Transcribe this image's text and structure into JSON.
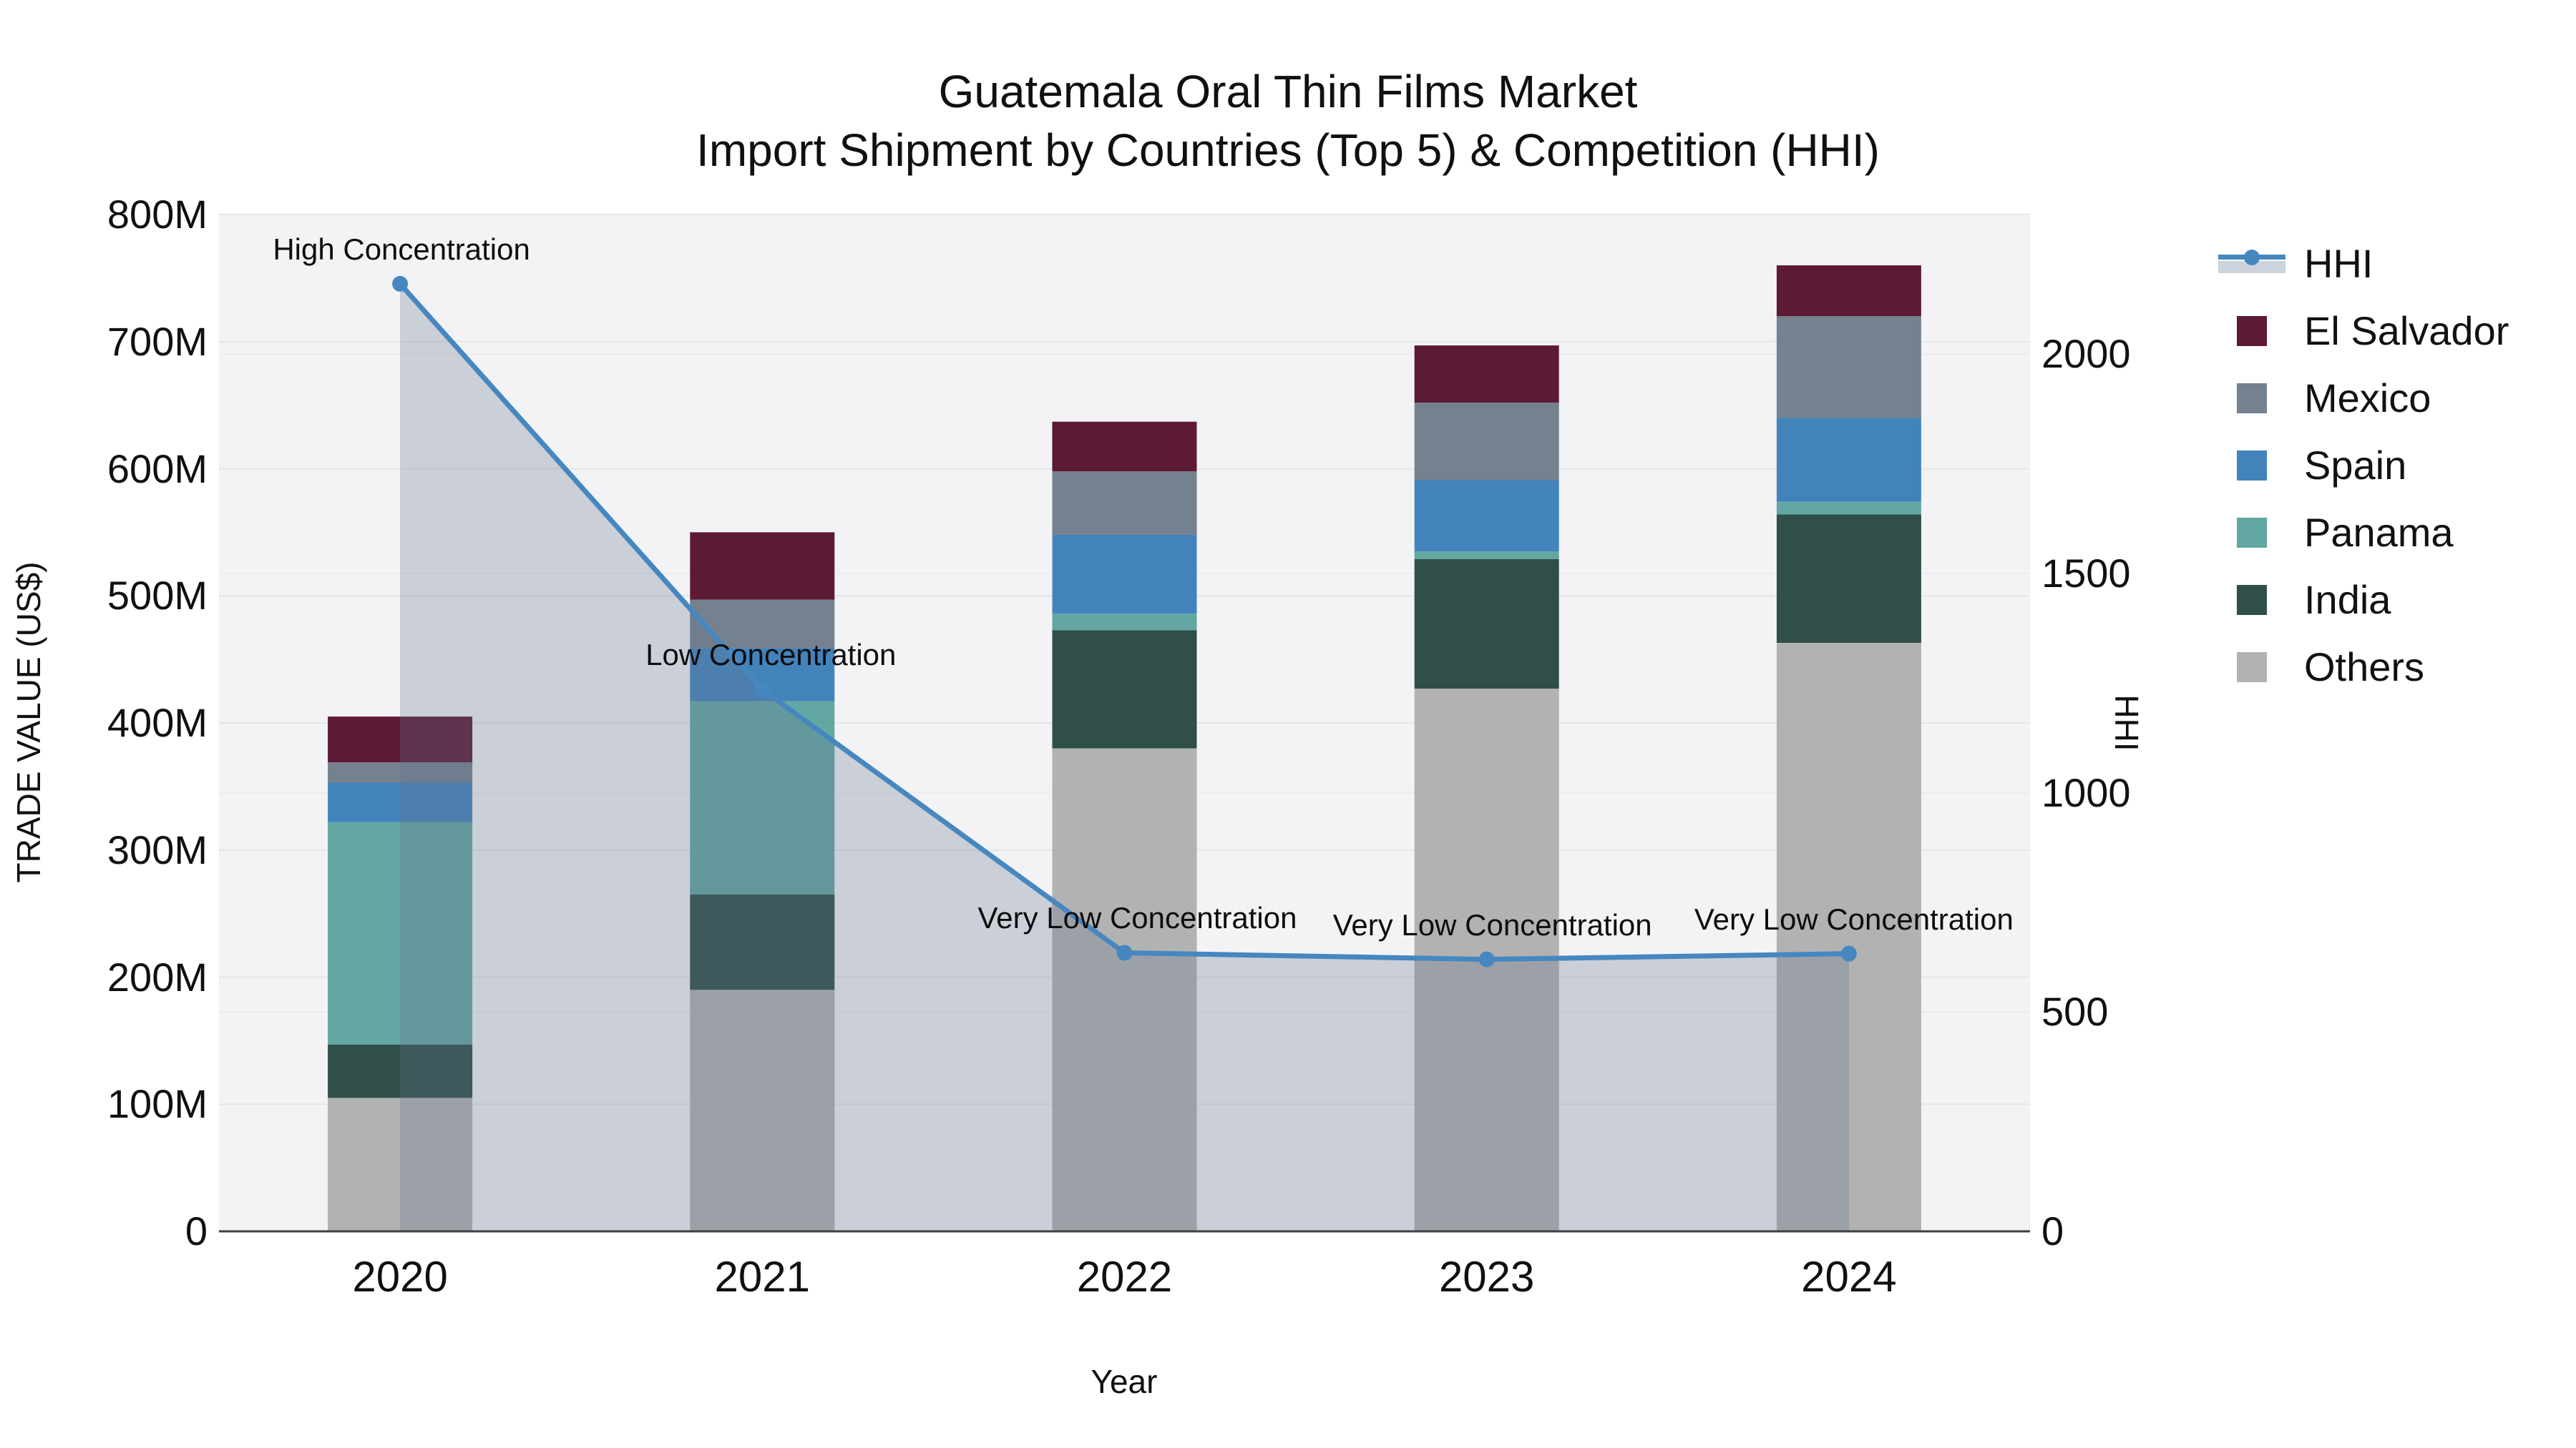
{
  "title": {
    "line1": "Guatemala Oral Thin Films Market",
    "line2": "Import Shipment by Countries (Top 5) & Competition (HHI)"
  },
  "axes": {
    "left": {
      "title": "TRADE VALUE (US$)",
      "tick_labels": [
        "0",
        "100M",
        "200M",
        "300M",
        "400M",
        "500M",
        "600M",
        "700M",
        "800M"
      ],
      "tick_values": [
        0,
        100,
        200,
        300,
        400,
        500,
        600,
        700,
        800
      ],
      "max": 800
    },
    "right": {
      "title": "HHI",
      "tick_labels": [
        "0",
        "500",
        "1000",
        "1500",
        "2000"
      ],
      "tick_values": [
        0,
        500,
        1000,
        1500,
        2000
      ],
      "max": 2318
    },
    "x": {
      "title": "Year"
    }
  },
  "chart_data": {
    "type": "combo-stacked-bar-line",
    "categories": [
      "2020",
      "2021",
      "2022",
      "2023",
      "2024"
    ],
    "value_unit": "US$ millions",
    "series": [
      {
        "name": "Others",
        "color": "#b2b2b2",
        "values": [
          105,
          190,
          380,
          427,
          463
        ]
      },
      {
        "name": "India",
        "color": "#2f4f48",
        "values": [
          42,
          75,
          93,
          102,
          101
        ]
      },
      {
        "name": "Panama",
        "color": "#63a7a3",
        "values": [
          175,
          152,
          13,
          6,
          10
        ]
      },
      {
        "name": "Spain",
        "color": "#4383bc",
        "values": [
          31,
          42,
          62,
          56,
          66
        ]
      },
      {
        "name": "Mexico",
        "color": "#74818f",
        "values": [
          16,
          38,
          50,
          61,
          80
        ]
      },
      {
        "name": "El Salvador",
        "color": "#5d1a37",
        "values": [
          36,
          53,
          39,
          45,
          40
        ]
      }
    ],
    "bar_totals": [
      405,
      550,
      637,
      697,
      760
    ],
    "line": {
      "name": "HHI",
      "color": "#4687c0",
      "area_fill": "rgba(100,115,140,0.28)",
      "values": [
        2160,
        1235,
        635,
        620,
        633
      ]
    },
    "annotations": [
      {
        "text": "High Concentration",
        "index": 0,
        "dx": 2
      },
      {
        "text": "Low Concentration",
        "index": 1,
        "dx": 12
      },
      {
        "text": "Very Low Concentration",
        "index": 2,
        "dx": 18
      },
      {
        "text": "Very Low Concentration",
        "index": 3,
        "dx": 8
      },
      {
        "text": "Very Low Concentration",
        "index": 4,
        "dx": 7
      }
    ],
    "ylim_left": [
      0,
      800
    ],
    "ylim_right": [
      0,
      2318
    ],
    "grid": true,
    "legend_position": "right"
  },
  "legend": {
    "items": [
      {
        "label": "HHI",
        "type": "line",
        "color": "#4687c0"
      },
      {
        "label": "El Salvador",
        "type": "square",
        "color": "#5d1a37"
      },
      {
        "label": "Mexico",
        "type": "square",
        "color": "#74818f"
      },
      {
        "label": "Spain",
        "type": "square",
        "color": "#4383bc"
      },
      {
        "label": "Panama",
        "type": "square",
        "color": "#63a7a3"
      },
      {
        "label": "India",
        "type": "square",
        "color": "#2f4f48"
      },
      {
        "label": "Others",
        "type": "square",
        "color": "#b2b2b2"
      }
    ]
  },
  "style": {
    "plot_bg": "#f3f3f5",
    "gridline": "#e4e5e8",
    "axis_line": "#404040"
  }
}
